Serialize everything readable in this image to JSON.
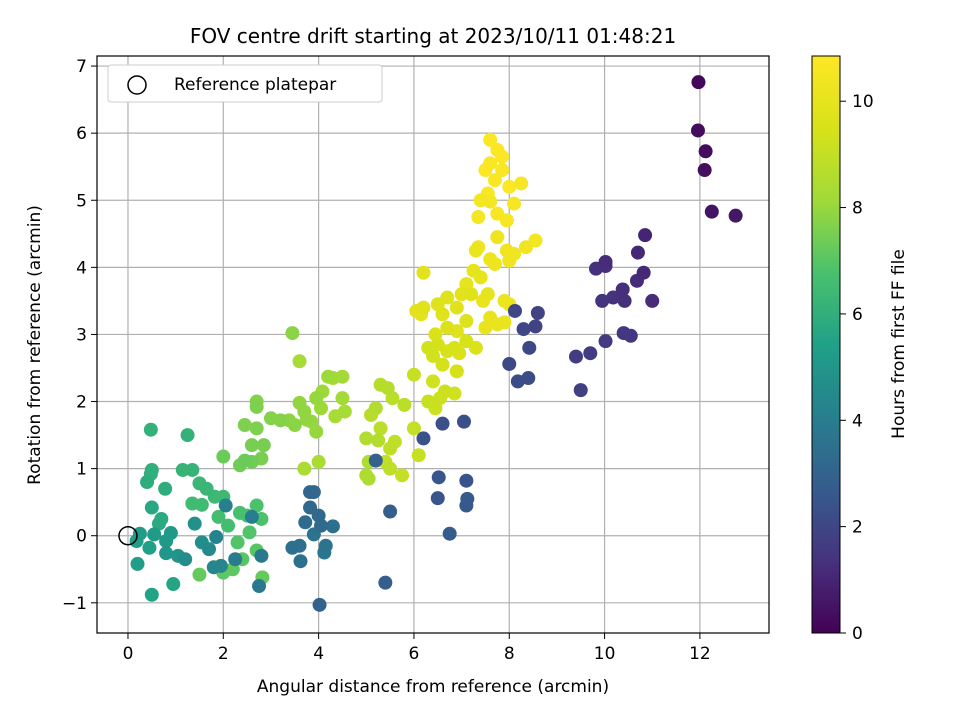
{
  "chart_data": {
    "type": "scatter",
    "title": "FOV centre drift starting at 2023/10/11 01:48:21",
    "xlabel": "Angular distance from reference (arcmin)",
    "ylabel": "Rotation from reference (arcmin)",
    "xlim": [
      -0.65,
      13.45
    ],
    "ylim": [
      -1.45,
      7.15
    ],
    "xticks": [
      0,
      2,
      4,
      6,
      8,
      10,
      12
    ],
    "yticks": [
      -1,
      0,
      1,
      2,
      3,
      4,
      5,
      6,
      7
    ],
    "grid": true,
    "legend": {
      "position": "top-left",
      "entries": [
        {
          "label": "Reference platepar",
          "marker": "open-circle"
        }
      ]
    },
    "reference_point": {
      "x": 0,
      "y": 0
    },
    "colorbar": {
      "label": "Hours from first FF file",
      "colormap": "viridis",
      "range": [
        0,
        10.85
      ],
      "ticks": [
        0,
        2,
        4,
        6,
        8,
        10
      ]
    },
    "points": [
      [
        11.97,
        6.76,
        0.2
      ],
      [
        11.96,
        6.04,
        0.3
      ],
      [
        12.12,
        5.73,
        0.3
      ],
      [
        12.1,
        5.45,
        0.4
      ],
      [
        12.25,
        4.83,
        0.5
      ],
      [
        12.75,
        4.77,
        0.6
      ],
      [
        10.85,
        4.48,
        1.0
      ],
      [
        10.7,
        4.22,
        1.1
      ],
      [
        10.82,
        3.92,
        1.1
      ],
      [
        10.68,
        3.8,
        1.2
      ],
      [
        11.0,
        3.5,
        1.2
      ],
      [
        10.38,
        3.67,
        1.3
      ],
      [
        10.42,
        3.5,
        1.3
      ],
      [
        10.18,
        3.55,
        1.4
      ],
      [
        9.95,
        3.5,
        1.4
      ],
      [
        10.02,
        4.08,
        1.2
      ],
      [
        9.82,
        3.98,
        1.3
      ],
      [
        10.02,
        4.02,
        1.3
      ],
      [
        10.4,
        3.02,
        1.5
      ],
      [
        10.55,
        2.98,
        1.5
      ],
      [
        10.02,
        2.9,
        1.6
      ],
      [
        9.7,
        2.72,
        1.7
      ],
      [
        9.4,
        2.67,
        1.7
      ],
      [
        9.5,
        2.17,
        1.8
      ],
      [
        8.6,
        3.32,
        1.9
      ],
      [
        8.55,
        3.12,
        1.9
      ],
      [
        8.3,
        3.08,
        2.0
      ],
      [
        8.12,
        3.35,
        2.0
      ],
      [
        8.42,
        2.8,
        2.1
      ],
      [
        8.0,
        2.56,
        2.1
      ],
      [
        8.18,
        2.3,
        2.2
      ],
      [
        8.4,
        2.35,
        2.2
      ],
      [
        7.05,
        1.7,
        2.3
      ],
      [
        6.6,
        1.67,
        2.3
      ],
      [
        6.2,
        1.45,
        2.4
      ],
      [
        7.1,
        0.82,
        2.4
      ],
      [
        6.52,
        0.87,
        2.5
      ],
      [
        6.5,
        0.56,
        2.5
      ],
      [
        7.12,
        0.55,
        2.6
      ],
      [
        7.1,
        0.45,
        2.6
      ],
      [
        6.75,
        0.03,
        2.7
      ],
      [
        5.5,
        0.36,
        2.8
      ],
      [
        5.4,
        -0.7,
        2.8
      ],
      [
        5.2,
        1.12,
        2.9
      ],
      [
        4.02,
        -1.03,
        3.0
      ],
      [
        3.9,
        0.65,
        3.1
      ],
      [
        3.82,
        0.65,
        3.1
      ],
      [
        3.82,
        0.42,
        3.2
      ],
      [
        4.0,
        0.3,
        3.2
      ],
      [
        3.72,
        0.2,
        3.3
      ],
      [
        4.05,
        0.15,
        3.3
      ],
      [
        4.3,
        0.14,
        3.4
      ],
      [
        3.6,
        -0.15,
        3.4
      ],
      [
        3.45,
        -0.18,
        3.5
      ],
      [
        3.62,
        -0.38,
        3.5
      ],
      [
        3.9,
        0.02,
        3.6
      ],
      [
        4.15,
        -0.15,
        3.6
      ],
      [
        4.12,
        -0.25,
        3.7
      ],
      [
        2.8,
        -0.3,
        3.8
      ],
      [
        2.75,
        -0.75,
        3.8
      ],
      [
        2.25,
        -0.35,
        3.9
      ],
      [
        2.6,
        0.28,
        4.0
      ],
      [
        2.05,
        0.45,
        4.1
      ],
      [
        1.85,
        -0.02,
        4.2
      ],
      [
        1.95,
        -0.45,
        4.3
      ],
      [
        1.8,
        -0.47,
        4.4
      ],
      [
        1.7,
        -0.2,
        4.5
      ],
      [
        1.2,
        -0.35,
        4.6
      ],
      [
        1.55,
        -0.1,
        4.7
      ],
      [
        1.4,
        0.18,
        4.8
      ],
      [
        1.05,
        -0.3,
        4.9
      ],
      [
        0.8,
        -0.26,
        5.0
      ],
      [
        0.8,
        -0.08,
        5.1
      ],
      [
        0.9,
        0.04,
        5.1
      ],
      [
        0.55,
        0.02,
        5.2
      ],
      [
        0.25,
        0.03,
        5.2
      ],
      [
        0.18,
        -0.08,
        5.3
      ],
      [
        0.2,
        -0.42,
        5.3
      ],
      [
        0.45,
        -0.18,
        5.4
      ],
      [
        0.5,
        -0.88,
        5.5
      ],
      [
        0.95,
        -0.72,
        5.6
      ],
      [
        0.5,
        0.42,
        5.7
      ],
      [
        0.7,
        0.25,
        5.8
      ],
      [
        0.65,
        0.18,
        5.8
      ],
      [
        0.78,
        0.7,
        5.9
      ],
      [
        0.4,
        0.8,
        5.9
      ],
      [
        0.48,
        0.92,
        6.0
      ],
      [
        0.5,
        0.98,
        6.0
      ],
      [
        0.48,
        1.58,
        6.1
      ],
      [
        1.25,
        1.5,
        6.1
      ],
      [
        1.15,
        0.98,
        6.2
      ],
      [
        1.35,
        0.98,
        6.2
      ],
      [
        1.5,
        0.78,
        6.3
      ],
      [
        1.65,
        0.7,
        6.3
      ],
      [
        1.82,
        0.58,
        6.4
      ],
      [
        2.0,
        0.58,
        6.4
      ],
      [
        1.35,
        0.48,
        6.5
      ],
      [
        1.55,
        0.46,
        6.5
      ],
      [
        1.9,
        0.28,
        6.6
      ],
      [
        2.1,
        0.15,
        6.6
      ],
      [
        2.35,
        0.34,
        6.7
      ],
      [
        2.5,
        0.3,
        6.7
      ],
      [
        2.7,
        0.45,
        6.8
      ],
      [
        2.8,
        0.25,
        6.8
      ],
      [
        2.55,
        0.05,
        6.9
      ],
      [
        2.3,
        -0.1,
        6.9
      ],
      [
        2.7,
        -0.22,
        7.0
      ],
      [
        2.4,
        -0.35,
        7.0
      ],
      [
        2.2,
        -0.5,
        7.1
      ],
      [
        2.0,
        -0.55,
        7.1
      ],
      [
        1.5,
        -0.58,
        7.2
      ],
      [
        2.82,
        -0.62,
        7.2
      ],
      [
        2.0,
        1.18,
        7.3
      ],
      [
        2.45,
        1.12,
        7.3
      ],
      [
        2.6,
        1.1,
        7.4
      ],
      [
        2.35,
        1.05,
        7.4
      ],
      [
        2.8,
        1.15,
        7.5
      ],
      [
        2.6,
        1.35,
        7.5
      ],
      [
        2.85,
        1.35,
        7.5
      ],
      [
        2.45,
        1.65,
        7.6
      ],
      [
        2.7,
        1.6,
        7.6
      ],
      [
        2.7,
        1.92,
        7.6
      ],
      [
        2.7,
        2.0,
        7.7
      ],
      [
        3.0,
        1.75,
        7.7
      ],
      [
        3.2,
        1.72,
        7.7
      ],
      [
        3.38,
        1.72,
        7.8
      ],
      [
        3.5,
        1.65,
        7.8
      ],
      [
        3.45,
        3.02,
        7.8
      ],
      [
        3.6,
        1.98,
        7.9
      ],
      [
        3.7,
        1.85,
        7.9
      ],
      [
        3.75,
        1.73,
        7.9
      ],
      [
        3.85,
        1.7,
        8.0
      ],
      [
        3.95,
        1.55,
        8.0
      ],
      [
        3.95,
        2.05,
        8.0
      ],
      [
        4.05,
        1.9,
        8.1
      ],
      [
        4.08,
        2.15,
        8.1
      ],
      [
        4.2,
        2.37,
        8.1
      ],
      [
        4.3,
        2.35,
        8.2
      ],
      [
        4.5,
        2.37,
        8.2
      ],
      [
        4.5,
        2.05,
        8.2
      ],
      [
        4.55,
        1.85,
        8.3
      ],
      [
        4.35,
        1.78,
        8.3
      ],
      [
        3.6,
        2.6,
        8.3
      ],
      [
        3.7,
        1.0,
        8.4
      ],
      [
        4.0,
        1.1,
        8.4
      ],
      [
        5.05,
        1.1,
        8.5
      ],
      [
        5.0,
        0.9,
        8.5
      ],
      [
        5.05,
        0.85,
        8.5
      ],
      [
        5.25,
        1.42,
        8.6
      ],
      [
        5.0,
        1.45,
        8.6
      ],
      [
        5.2,
        1.9,
        8.6
      ],
      [
        5.1,
        1.8,
        8.7
      ],
      [
        5.3,
        2.25,
        8.7
      ],
      [
        5.45,
        2.2,
        8.7
      ],
      [
        5.55,
        2.05,
        8.8
      ],
      [
        5.8,
        1.95,
        8.8
      ],
      [
        5.3,
        1.6,
        8.8
      ],
      [
        5.5,
        1.3,
        8.9
      ],
      [
        5.6,
        1.4,
        8.9
      ],
      [
        5.5,
        1.0,
        8.9
      ],
      [
        5.4,
        1.1,
        9.0
      ],
      [
        5.75,
        0.9,
        9.0
      ],
      [
        6.0,
        1.6,
        9.0
      ],
      [
        6.1,
        1.2,
        9.1
      ],
      [
        6.0,
        2.4,
        9.1
      ],
      [
        6.3,
        2.0,
        9.1
      ],
      [
        6.45,
        1.9,
        9.2
      ],
      [
        6.55,
        2.05,
        9.2
      ],
      [
        6.65,
        2.15,
        9.2
      ],
      [
        6.85,
        2.12,
        9.3
      ],
      [
        6.4,
        2.3,
        9.3
      ],
      [
        6.3,
        2.8,
        9.3
      ],
      [
        6.4,
        2.68,
        9.3
      ],
      [
        6.6,
        2.55,
        9.4
      ],
      [
        6.9,
        2.45,
        9.4
      ],
      [
        6.5,
        2.85,
        9.4
      ],
      [
        6.7,
        2.75,
        9.5
      ],
      [
        6.85,
        2.8,
        9.5
      ],
      [
        7.1,
        2.9,
        9.5
      ],
      [
        6.95,
        2.72,
        9.6
      ],
      [
        7.3,
        2.8,
        9.6
      ],
      [
        6.45,
        3.0,
        9.6
      ],
      [
        6.7,
        3.1,
        9.6
      ],
      [
        6.9,
        3.05,
        9.7
      ],
      [
        7.1,
        3.2,
        9.7
      ],
      [
        6.5,
        3.45,
        9.7
      ],
      [
        6.6,
        3.3,
        9.7
      ],
      [
        6.7,
        3.55,
        9.8
      ],
      [
        6.9,
        3.4,
        9.8
      ],
      [
        7.2,
        3.6,
        9.8
      ],
      [
        6.2,
        3.4,
        9.8
      ],
      [
        6.15,
        3.3,
        9.9
      ],
      [
        6.2,
        3.92,
        9.9
      ],
      [
        6.05,
        3.35,
        9.9
      ],
      [
        7.0,
        3.6,
        9.9
      ],
      [
        7.1,
        3.75,
        10.0
      ],
      [
        7.25,
        3.95,
        10.0
      ],
      [
        7.4,
        3.85,
        10.0
      ],
      [
        7.55,
        3.6,
        10.0
      ],
      [
        7.45,
        3.5,
        10.1
      ],
      [
        7.6,
        3.25,
        10.1
      ],
      [
        7.5,
        3.1,
        10.1
      ],
      [
        7.75,
        3.15,
        10.1
      ],
      [
        7.9,
        3.18,
        10.2
      ],
      [
        7.9,
        3.5,
        10.2
      ],
      [
        8.0,
        3.45,
        10.2
      ],
      [
        7.3,
        4.25,
        10.2
      ],
      [
        7.35,
        4.3,
        10.3
      ],
      [
        7.6,
        4.12,
        10.3
      ],
      [
        7.7,
        4.05,
        10.3
      ],
      [
        7.75,
        4.45,
        10.3
      ],
      [
        7.95,
        4.25,
        10.4
      ],
      [
        8.0,
        4.1,
        10.4
      ],
      [
        8.1,
        4.2,
        10.4
      ],
      [
        8.35,
        4.3,
        10.4
      ],
      [
        8.55,
        4.4,
        10.5
      ],
      [
        7.35,
        4.75,
        10.5
      ],
      [
        7.4,
        5.0,
        10.5
      ],
      [
        7.6,
        4.98,
        10.5
      ],
      [
        7.75,
        4.8,
        10.6
      ],
      [
        7.95,
        4.7,
        10.6
      ],
      [
        8.1,
        4.95,
        10.6
      ],
      [
        8.25,
        5.25,
        10.6
      ],
      [
        7.7,
        5.3,
        10.7
      ],
      [
        7.85,
        5.45,
        10.7
      ],
      [
        7.55,
        5.1,
        10.7
      ],
      [
        7.6,
        5.55,
        10.7
      ],
      [
        7.85,
        5.65,
        10.8
      ],
      [
        7.6,
        5.9,
        10.8
      ],
      [
        7.75,
        5.75,
        10.8
      ],
      [
        7.5,
        5.45,
        10.8
      ],
      [
        8.0,
        5.2,
        10.8
      ]
    ]
  }
}
